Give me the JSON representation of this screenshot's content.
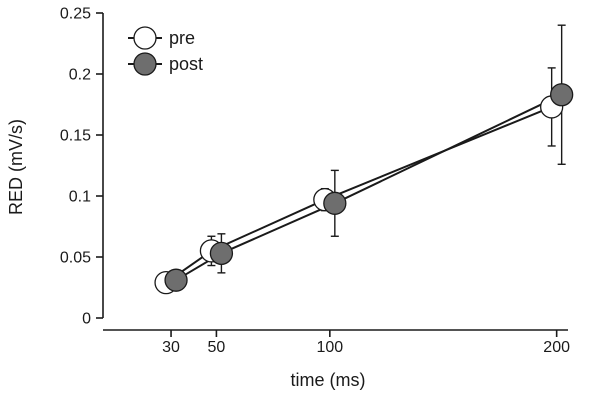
{
  "chart_data": {
    "type": "line",
    "title": "",
    "xlabel": "time (ms)",
    "ylabel": "RED  (mV/s)",
    "x_ticks": [
      30,
      50,
      100,
      200
    ],
    "x_tick_labels": [
      "30",
      "50",
      "100",
      "200"
    ],
    "y_ticks": [
      0,
      0.05,
      0.1,
      0.15,
      0.2,
      0.25
    ],
    "y_tick_labels": [
      "0",
      "0.05",
      "0.1",
      "0.15",
      "0.2",
      "0.25"
    ],
    "xlim": [
      0,
      205
    ],
    "ylim": [
      0,
      0.25
    ],
    "grid": false,
    "legend_position": "top-left",
    "series": [
      {
        "name": "pre",
        "color": "#ffffff",
        "x": [
          30,
          50,
          100,
          200
        ],
        "values": [
          0.029,
          0.055,
          0.097,
          0.173
        ],
        "error": [
          0.005,
          0.012,
          0.009,
          0.032
        ]
      },
      {
        "name": "post",
        "color": "#6e6e6e",
        "x": [
          30,
          50,
          100,
          200
        ],
        "values": [
          0.031,
          0.053,
          0.094,
          0.183
        ],
        "error": [
          0.007,
          0.016,
          0.027,
          0.057
        ]
      }
    ]
  }
}
